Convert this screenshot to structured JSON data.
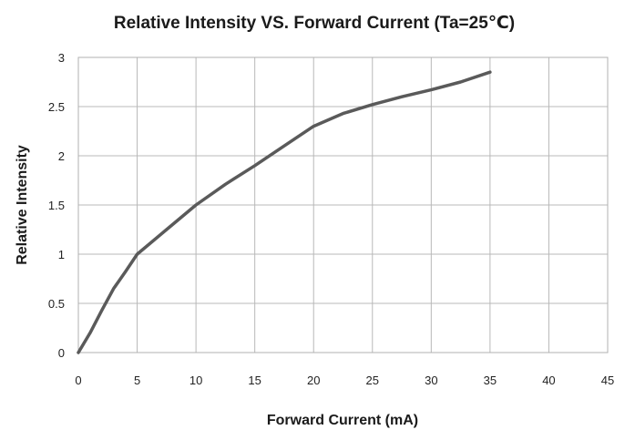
{
  "chart_data": {
    "type": "line",
    "title": "Relative Intensity VS. Forward Current  (Ta=25℃)",
    "xlabel": "Forward Current (mA)",
    "ylabel": "Relative  Intensity",
    "xlim": [
      0,
      45
    ],
    "ylim": [
      0,
      3
    ],
    "x_ticks": [
      0,
      5,
      10,
      15,
      20,
      25,
      30,
      35,
      40,
      45
    ],
    "y_ticks": [
      "0",
      "0.5",
      "1",
      "1.5",
      "2",
      "2.5",
      "3"
    ],
    "grid": true,
    "series": [
      {
        "color": "#5a5a5a",
        "x": [
          0,
          1,
          2,
          3,
          4,
          5,
          7.5,
          10,
          12.5,
          15,
          17.5,
          20,
          22.5,
          25,
          27.5,
          30,
          32.5,
          35
        ],
        "y": [
          0,
          0.2,
          0.43,
          0.65,
          0.82,
          1.0,
          1.25,
          1.5,
          1.71,
          1.9,
          2.1,
          2.3,
          2.43,
          2.52,
          2.6,
          2.67,
          2.75,
          2.85
        ]
      }
    ]
  }
}
